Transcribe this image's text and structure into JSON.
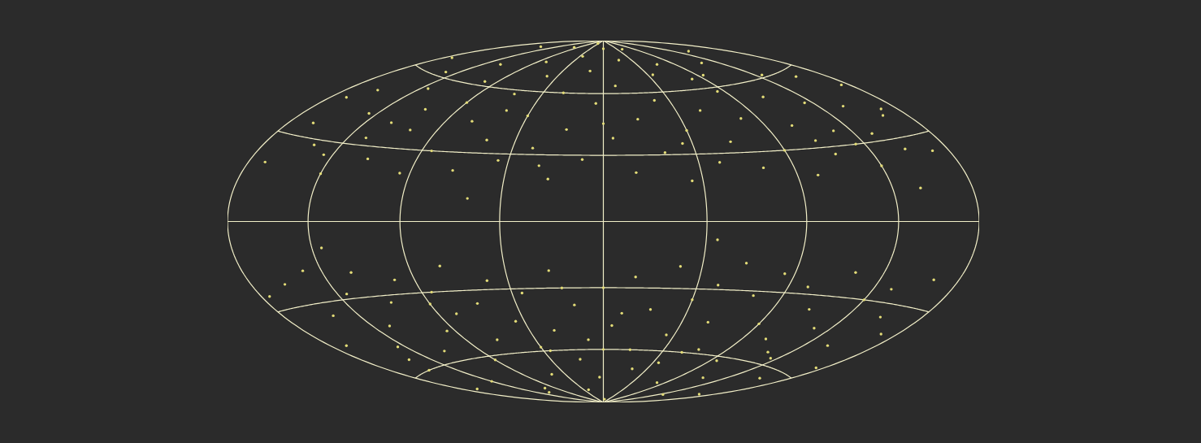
{
  "chart_data": {
    "type": "scatter",
    "x": [
      -170,
      -165,
      -160,
      -150,
      -145,
      -140,
      -135,
      -130,
      -125,
      -120,
      -115,
      -110,
      -105,
      -100,
      -95,
      -90,
      -85,
      -80,
      -75,
      -70,
      -65,
      -60,
      -55,
      -50,
      -45,
      -40,
      -35,
      -30,
      -25,
      -20,
      -15,
      -10,
      -5,
      0,
      5,
      10,
      15,
      20,
      25,
      30,
      35,
      40,
      45,
      50,
      55,
      60,
      65,
      70,
      75,
      80,
      85,
      90,
      95,
      100,
      105,
      110,
      115,
      120,
      125,
      130,
      135,
      140,
      145,
      150,
      155,
      160,
      165,
      170,
      175,
      -175,
      -155,
      -100,
      -50,
      60,
      150,
      -120,
      -60,
      0,
      40,
      110,
      -30,
      80,
      -170,
      170,
      -140,
      130,
      -175,
      -170,
      -160,
      -155,
      -150,
      -145,
      -140,
      -135,
      -130,
      -125,
      -120,
      -115,
      -110,
      -105,
      -100,
      -95,
      -90,
      -85,
      -80,
      -75,
      -70,
      -65,
      -60,
      -55,
      -50,
      -45,
      -40,
      -35,
      -30,
      -25,
      -20,
      -15,
      -10,
      -5,
      0,
      5,
      10,
      15,
      20,
      25,
      30,
      35,
      40,
      45,
      50,
      55,
      60,
      65,
      70,
      75,
      80,
      85,
      90,
      95,
      100,
      105,
      110,
      115,
      120,
      125,
      130,
      135,
      140,
      145,
      150,
      155,
      160,
      165,
      170,
      175,
      -150,
      -90,
      -40,
      10,
      60,
      120,
      170,
      -170,
      0,
      -120,
      -20,
      -60,
      50,
      150,
      -130
    ],
    "values": [
      20,
      35,
      50,
      28,
      62,
      42,
      18,
      55,
      33,
      70,
      25,
      47,
      38,
      62,
      20,
      52,
      30,
      75,
      44,
      22,
      58,
      36,
      68,
      27,
      48,
      80,
      33,
      60,
      19,
      42,
      72,
      28,
      55,
      85,
      38,
      64,
      22,
      47,
      78,
      31,
      56,
      18,
      41,
      69,
      26,
      50,
      35,
      74,
      23,
      45,
      58,
      30,
      66,
      19,
      40,
      53,
      27,
      71,
      36,
      48,
      21,
      61,
      33,
      44,
      26,
      57,
      38,
      24,
      50,
      66,
      80,
      84,
      88,
      84,
      76,
      40,
      50,
      45,
      35,
      33,
      25,
      65,
      45,
      40,
      25,
      30,
      -25,
      -45,
      -22,
      -60,
      -35,
      -18,
      -50,
      -70,
      -28,
      -42,
      -20,
      -55,
      -33,
      -78,
      -24,
      -47,
      -62,
      -30,
      -40,
      -19,
      -53,
      -36,
      -72,
      -26,
      -45,
      -58,
      -32,
      -82,
      -50,
      -22,
      -65,
      -38,
      -55,
      -75,
      -30,
      -48,
      -88,
      -25,
      -60,
      -40,
      -70,
      -20,
      -52,
      -35,
      -66,
      -28,
      -45,
      -18,
      -58,
      -32,
      -76,
      -22,
      -44,
      -62,
      -27,
      -50,
      -36,
      -70,
      -20,
      -43,
      -57,
      -30,
      -80,
      -25,
      -48,
      -35,
      -64,
      -20,
      -40,
      -55,
      -55,
      -35,
      -60,
      -42,
      -60,
      -55,
      -75,
      -70,
      -60,
      -80,
      -30,
      10,
      -8,
      12,
      -10
    ],
    "xlim": [
      -180,
      180
    ],
    "ylim": [
      -90,
      90
    ],
    "xticks": [
      -180,
      -135,
      -90,
      -45,
      0,
      45,
      90,
      135,
      180
    ],
    "yticks": [
      -90,
      -60,
      -30,
      0,
      30,
      60,
      90
    ],
    "grid": true,
    "tick_labels": false,
    "color": "#e3dc78"
  }
}
